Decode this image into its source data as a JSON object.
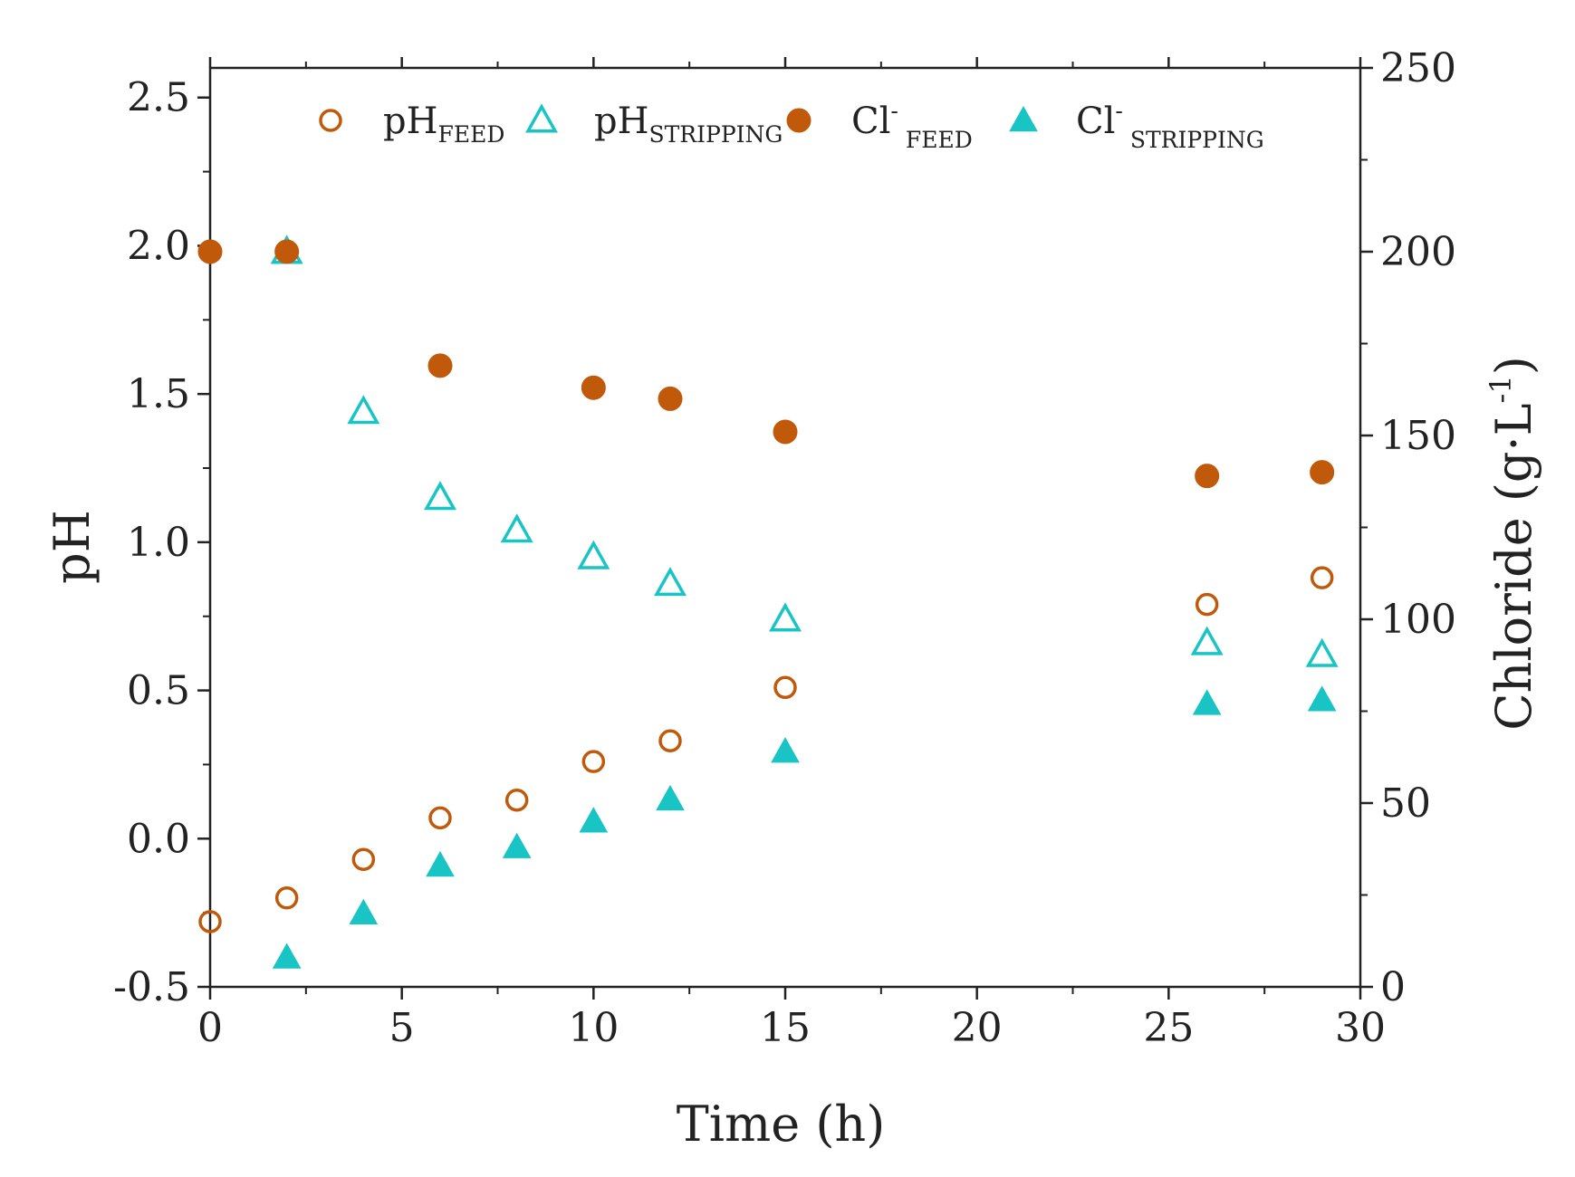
{
  "chart_data": {
    "type": "scatter",
    "xlabel": "Time (h)",
    "ylabel_left": "pH",
    "ylabel_right": "Chloride (g·L",
    "ylabel_right_sup": "-1",
    "ylabel_right_close": ")",
    "xlim": [
      0,
      30
    ],
    "ylim_left": [
      -0.5,
      2.6
    ],
    "ylim_right": [
      0,
      250
    ],
    "x_ticks": [
      "0",
      "5",
      "10",
      "15",
      "20",
      "25",
      "30"
    ],
    "y_left_ticks": [
      "-0.5",
      "0.0",
      "0.5",
      "1.0",
      "1.5",
      "2.0",
      "2.5"
    ],
    "y_right_ticks": [
      "0",
      "50",
      "100",
      "150",
      "200",
      "250"
    ],
    "grid": false,
    "legend_position": "top",
    "colors": {
      "feed": "#c05a0a",
      "stripping": "#19c4c4",
      "axis": "#222222"
    },
    "series": [
      {
        "name": "pHFEED",
        "label_main": "pH",
        "label_sup": "",
        "label_sub": "FEED",
        "axis": "left",
        "marker": "circle-open",
        "color": "#c05a0a",
        "x": [
          0,
          2,
          4,
          6,
          8,
          10,
          12,
          15,
          26,
          29
        ],
        "y": [
          -0.28,
          -0.2,
          -0.07,
          0.07,
          0.13,
          0.26,
          0.33,
          0.51,
          0.79,
          0.88
        ]
      },
      {
        "name": "pHSTRIPPING",
        "label_main": "pH",
        "label_sup": "",
        "label_sub": "STRIPPING",
        "axis": "left",
        "marker": "triangle-open",
        "color": "#19c4c4",
        "x": [
          2,
          4,
          6,
          8,
          10,
          12,
          15,
          26,
          29
        ],
        "y": [
          1.98,
          1.44,
          1.15,
          1.04,
          0.95,
          0.86,
          0.74,
          0.66,
          0.62
        ]
      },
      {
        "name": "Cl-FEED",
        "label_main": "Cl",
        "label_sup": "-",
        "label_sub": "FEED",
        "axis": "right",
        "marker": "circle-filled",
        "color": "#c05a0a",
        "x": [
          0,
          2,
          6,
          10,
          12,
          15,
          26,
          29
        ],
        "y": [
          200,
          200,
          169,
          163,
          160,
          151,
          139,
          140
        ]
      },
      {
        "name": "Cl-STRIPPING",
        "label_main": "Cl",
        "label_sup": "-",
        "label_sub": "STRIPPING",
        "axis": "right",
        "marker": "triangle-filled",
        "color": "#19c4c4",
        "x": [
          2,
          4,
          6,
          8,
          10,
          12,
          15,
          26,
          29
        ],
        "y": [
          8,
          20,
          33,
          38,
          45,
          51,
          64,
          77,
          78
        ]
      }
    ]
  }
}
